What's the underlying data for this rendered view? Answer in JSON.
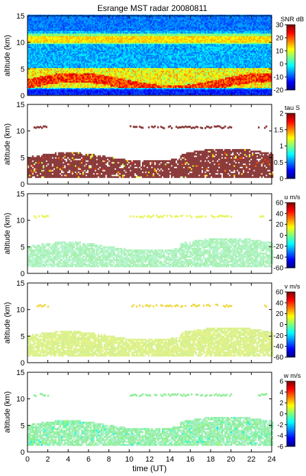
{
  "title": "Esrange MST radar 20080811",
  "chart_data": [
    {
      "type": "heatmap",
      "ylabel": "altitude (km)",
      "ylim": [
        0,
        15
      ],
      "yticks": [
        "0",
        "5",
        "10",
        "15"
      ],
      "xlim": [
        0,
        24
      ],
      "colorbar_label": "SNR dB",
      "colorbar_ticks": [
        "30",
        "20",
        "10",
        "0",
        "-10",
        "-20"
      ],
      "clim": [
        -20,
        30
      ],
      "colormap": "jet",
      "background": "#2c4fcf"
    },
    {
      "type": "heatmap",
      "ylabel": "altitude (km)",
      "ylim": [
        0,
        15
      ],
      "yticks": [
        "0",
        "5",
        "10",
        "15"
      ],
      "xlim": [
        0,
        24
      ],
      "colorbar_label": "tau S",
      "colorbar_ticks": [
        "2",
        "1.5",
        "1",
        "0.5",
        "0"
      ],
      "clim": [
        0,
        2
      ],
      "colormap": "jet",
      "dominant_color": "#8b3a3a"
    },
    {
      "type": "heatmap",
      "ylabel": "altitude (km)",
      "ylim": [
        0,
        15
      ],
      "yticks": [
        "0",
        "5",
        "10",
        "15"
      ],
      "xlim": [
        0,
        24
      ],
      "colorbar_label": "u m/s",
      "colorbar_ticks": [
        "60",
        "40",
        "20",
        "0",
        "-20",
        "-40",
        "-60"
      ],
      "clim": [
        -60,
        60
      ],
      "colormap": "jet",
      "dominant_color": "#a8f0b0"
    },
    {
      "type": "heatmap",
      "ylabel": "altitude (km)",
      "ylim": [
        0,
        15
      ],
      "yticks": [
        "0",
        "5",
        "10",
        "15"
      ],
      "xlim": [
        0,
        24
      ],
      "colorbar_label": "v m/s",
      "colorbar_ticks": [
        "60",
        "40",
        "20",
        "0",
        "-20",
        "-40",
        "-60"
      ],
      "clim": [
        -60,
        60
      ],
      "colormap": "jet",
      "dominant_color": "#e4f28a"
    },
    {
      "type": "heatmap",
      "ylabel": "altitude (km)",
      "xlabel": "time (UT)",
      "ylim": [
        0,
        15
      ],
      "yticks": [
        "0",
        "5",
        "10",
        "15"
      ],
      "xlim": [
        0,
        24
      ],
      "xticks": [
        "0",
        "2",
        "4",
        "6",
        "8",
        "10",
        "12",
        "14",
        "16",
        "18",
        "20",
        "22",
        "24"
      ],
      "colorbar_label": "w m/s",
      "colorbar_ticks": [
        "6",
        "4",
        "2",
        "0",
        "-2",
        "-4",
        "-6"
      ],
      "clim": [
        -6,
        6
      ],
      "colormap": "jet",
      "dominant_color": "#90ee98"
    }
  ]
}
